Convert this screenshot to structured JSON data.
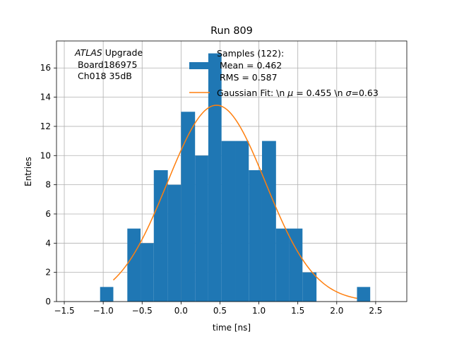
{
  "chart_data": {
    "type": "bar",
    "title": "Run 809",
    "xlabel": "time [ns]",
    "ylabel": "Entries",
    "xlim": [
      -1.6,
      2.9
    ],
    "ylim": [
      0,
      17.85
    ],
    "xticks": [
      -1.5,
      -1.0,
      -0.5,
      0.0,
      0.5,
      1.0,
      1.5,
      2.0,
      2.5
    ],
    "xtick_labels": [
      "−1.5",
      "−1.0",
      "−0.5",
      "0.0",
      "0.5",
      "1.0",
      "1.5",
      "2.0",
      "2.5"
    ],
    "yticks": [
      0,
      2,
      4,
      6,
      8,
      10,
      12,
      14,
      16
    ],
    "ytick_labels": [
      "0",
      "2",
      "4",
      "6",
      "8",
      "10",
      "12",
      "14",
      "16"
    ],
    "grid": true,
    "bar_color": "#1f77b4",
    "fit_color": "#ff7f0e",
    "bin_edges": [
      -1.04,
      -0.87,
      -0.69,
      -0.52,
      -0.35,
      -0.17,
      0.0,
      0.18,
      0.35,
      0.52,
      0.7,
      0.87,
      1.04,
      1.22,
      1.39,
      1.56,
      1.74,
      1.91,
      2.08,
      2.26,
      2.43
    ],
    "counts": [
      1,
      0,
      5,
      4,
      9,
      8,
      13,
      10,
      17,
      11,
      11,
      9,
      11,
      5,
      5,
      2,
      0,
      0,
      0,
      1
    ],
    "fit": {
      "mu": 0.455,
      "sigma": 0.63,
      "amplitude": 13.45,
      "x_range": [
        -0.87,
        2.26
      ]
    },
    "annotation_lines": [
      "ATLAS Upgrade",
      " Board186975",
      " Ch018 35dB"
    ],
    "annotation_italic_word": "ATLAS",
    "legend": {
      "placement": "top-right",
      "hist_label_lines": [
        "Samples (122):",
        " Mean = 0.462",
        " RMS = 0.587"
      ],
      "fit_label_prefix": "Gaussian Fit: \\n ",
      "fit_label_mu": "μ",
      "fit_label_mid": " = 0.455 \\n ",
      "fit_label_sigma": "σ",
      "fit_label_suffix": "=0.63"
    }
  }
}
